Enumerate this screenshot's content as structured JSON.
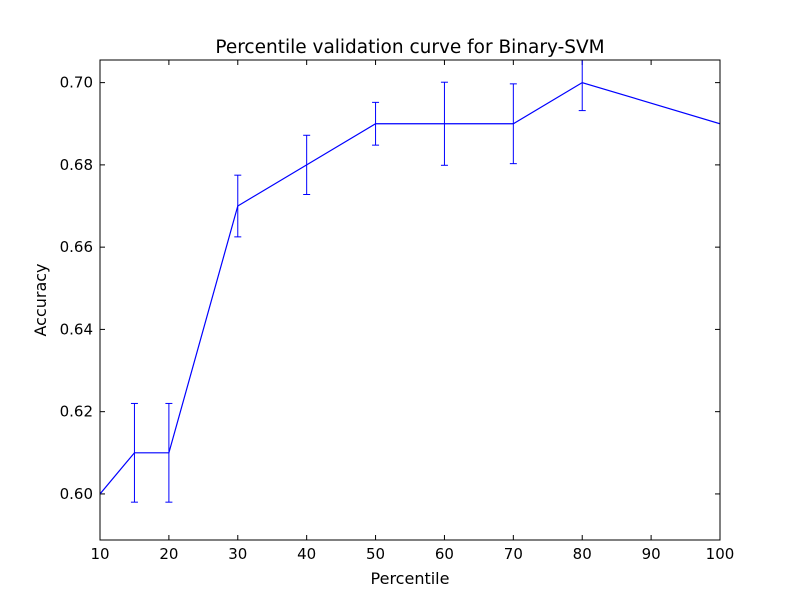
{
  "chart_data": {
    "type": "line",
    "title": "Percentile validation curve for Binary-SVM",
    "xlabel": "Percentile",
    "ylabel": "Accuracy",
    "xlim": [
      10,
      100
    ],
    "ylim": [
      0.5888,
      0.7055
    ],
    "xticks": [
      10,
      20,
      30,
      40,
      50,
      60,
      70,
      80,
      90,
      100
    ],
    "xtick_labels": [
      "10",
      "20",
      "30",
      "40",
      "50",
      "60",
      "70",
      "80",
      "90",
      "100"
    ],
    "yticks": [
      0.6,
      0.62,
      0.64,
      0.66,
      0.68,
      0.7
    ],
    "ytick_labels": [
      "0.60",
      "0.62",
      "0.64",
      "0.66",
      "0.68",
      "0.70"
    ],
    "grid": false,
    "line_color": "#0000ff",
    "series": [
      {
        "x": [
          10,
          15,
          20,
          30,
          40,
          50,
          60,
          70,
          80,
          100
        ],
        "y": [
          0.6,
          0.61,
          0.61,
          0.67,
          0.68,
          0.69,
          0.69,
          0.69,
          0.7,
          0.69
        ],
        "yerr": [
          null,
          0.012,
          0.012,
          0.0075,
          0.0072,
          0.0052,
          0.0101,
          0.0097,
          0.0068,
          null
        ]
      }
    ]
  }
}
